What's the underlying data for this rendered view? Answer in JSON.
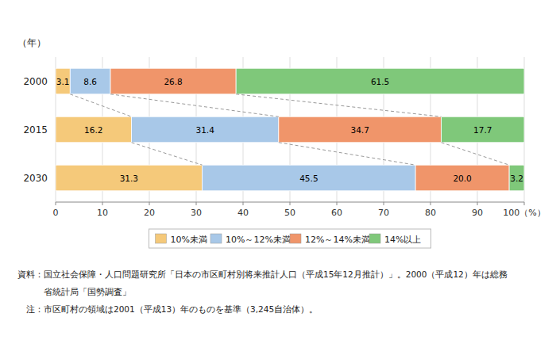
{
  "chart_data": {
    "type": "bar",
    "orientation": "horizontal",
    "stacked": true,
    "data_labels": true,
    "grid": true,
    "legend": "bottom",
    "ylabel": "（年）",
    "categories": [
      "2000",
      "2015",
      "2030"
    ],
    "series": [
      {
        "name": "10%未満",
        "color": "#F5C97A",
        "values": [
          3.1,
          16.2,
          31.3
        ],
        "value_labels": [
          "3.1",
          "16.2",
          "31.3"
        ]
      },
      {
        "name": "10%～12%未満",
        "color": "#A8C8E8",
        "values": [
          8.6,
          31.4,
          45.5
        ],
        "value_labels": [
          "8.6",
          "31.4",
          "45.5"
        ]
      },
      {
        "name": "12%～14%未満",
        "color": "#F0956A",
        "values": [
          26.8,
          34.7,
          20.0
        ],
        "value_labels": [
          "26.8",
          "34.7",
          "20.0"
        ]
      },
      {
        "name": "14%以上",
        "color": "#7FC87A",
        "values": [
          61.5,
          17.7,
          3.2
        ],
        "value_labels": [
          "61.5",
          "17.7",
          "3.2"
        ]
      }
    ],
    "xlim": [
      0,
      100
    ],
    "xticks": [
      0,
      10,
      20,
      30,
      40,
      50,
      60,
      70,
      80,
      90,
      {
        "value": 100,
        "label": "100（%）"
      }
    ],
    "annotations": [
      "資料：国立社会保障・人口問題研究所「日本の市区町村別将来推計人口（平成15年12月推計）」。2000（平成12）年は総務",
      "　　　省統計局「国勢調査」",
      "　注：市区町村の領域は2001（平成13）年のものを基準（3,245自治体）。"
    ]
  }
}
